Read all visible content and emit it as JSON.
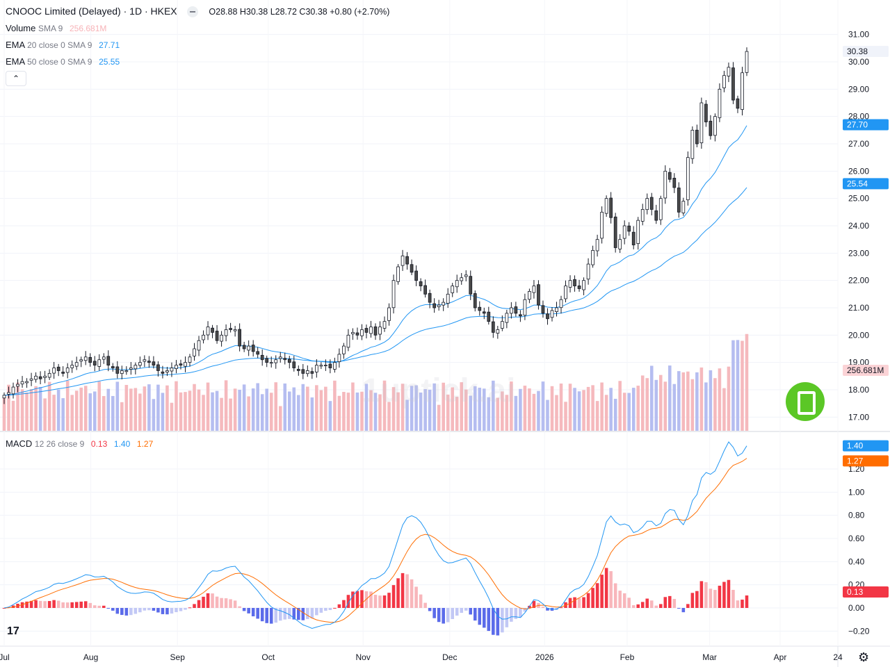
{
  "header": {
    "symbol": "CNOOC Limited (Delayed) · 1D · HKEX",
    "open": "O28.88",
    "high": "H30.38",
    "low": "L28.72",
    "close": "C30.38",
    "change": "+0.80 (+2.70%)"
  },
  "indicators": {
    "volume": {
      "label": "Volume",
      "params": "SMA 9",
      "value": "256.681M"
    },
    "ema20": {
      "label": "EMA",
      "params": "20 close 0 SMA 9",
      "value": "27.71"
    },
    "ema50": {
      "label": "EMA",
      "params": "50 close 0 SMA 9",
      "value": "25.55"
    },
    "macd": {
      "label": "MACD",
      "params": "12 26 close 9",
      "hist": "0.13",
      "macd": "1.40",
      "signal": "1.27"
    }
  },
  "price_axis_ticks": [
    "31.00",
    "30.00",
    "29.00",
    "28.00",
    "27.00",
    "26.00",
    "25.00",
    "24.00",
    "23.00",
    "22.00",
    "21.00",
    "20.00",
    "19.00",
    "18.00",
    "17.00"
  ],
  "macd_axis_ticks": [
    "1.20",
    "1.00",
    "0.80",
    "0.60",
    "0.40",
    "0.20",
    "0.00",
    "−0.20"
  ],
  "price_tags": {
    "last": "30.38",
    "ema20": "27.70",
    "ema50": "25.54",
    "volume": "256.681M"
  },
  "macd_tags": {
    "macd": "1.40",
    "signal": "1.27",
    "hist": "0.13"
  },
  "time_axis": [
    "Jul",
    "Aug",
    "Sep",
    "Oct",
    "Nov",
    "Dec",
    "2026",
    "Feb",
    "Mar",
    "Apr",
    "24"
  ],
  "watermark": "1uptick.ai",
  "tv_logo": "17",
  "colors": {
    "up": "#ffffff",
    "down": "#4a4a4a",
    "candle_border": "#131722",
    "ema20": "#2196f3",
    "ema50": "#2196f3",
    "macd_line": "#2196f3",
    "signal_line": "#ff6d00",
    "hist_pos_strong": "#f23645",
    "hist_pos_weak": "#f8b6bb",
    "hist_neg_strong": "#5b6bea",
    "hist_neg_weak": "#c2c8f5",
    "vol_up": "#f5b9bd",
    "vol_down": "#b5bdf0",
    "last_tag": "#f0f3fa",
    "volume_tag": "#fbd3d6"
  },
  "chart_data": {
    "type": "candlestick",
    "dates": "daily, Jul 2025 to Mar 2026",
    "price_range": [
      16.5,
      31.5
    ],
    "macd_range": [
      -0.3,
      1.35
    ],
    "key_points": [
      {
        "date": "Jul",
        "close": 18.0
      },
      {
        "date": "Aug",
        "close": 18.6
      },
      {
        "date": "Sep",
        "close": 20.2
      },
      {
        "date": "Oct",
        "close": 18.9
      },
      {
        "date": "Nov",
        "close": 22.5
      },
      {
        "date": "Dec",
        "close": 21.5
      },
      {
        "date": "2026",
        "close": 21.0
      },
      {
        "date": "Feb",
        "close": 25.0
      },
      {
        "date": "Mar",
        "close": 27.0
      },
      {
        "date": "last",
        "close": 30.38
      }
    ],
    "closes": [
      17.8,
      17.9,
      18.1,
      18.2,
      18.3,
      18.3,
      18.4,
      18.5,
      18.4,
      18.5,
      18.6,
      18.8,
      18.7,
      18.6,
      18.8,
      18.9,
      19.0,
      19.1,
      19.2,
      19.0,
      18.9,
      19.1,
      19.2,
      18.9,
      18.8,
      18.6,
      18.7,
      18.7,
      18.8,
      18.9,
      19.0,
      19.1,
      19.0,
      18.9,
      18.7,
      18.6,
      18.7,
      18.8,
      18.9,
      18.9,
      19.0,
      19.2,
      19.5,
      19.8,
      20.0,
      20.3,
      20.1,
      19.8,
      20.0,
      20.2,
      20.2,
      20.2,
      19.6,
      19.5,
      19.6,
      19.4,
      19.3,
      19.1,
      19.0,
      19.0,
      19.1,
      19.2,
      19.1,
      19.0,
      18.8,
      18.7,
      18.6,
      18.7,
      18.6,
      18.9,
      18.9,
      18.9,
      18.8,
      19.0,
      19.3,
      19.6,
      20.0,
      20.1,
      20.0,
      20.2,
      20.1,
      20.3,
      20.0,
      20.3,
      20.5,
      21.0,
      22.0,
      22.5,
      22.9,
      22.6,
      22.3,
      22.0,
      21.8,
      21.5,
      21.2,
      21.0,
      21.1,
      21.2,
      21.5,
      21.8,
      22.0,
      22.1,
      22.2,
      21.5,
      21.0,
      20.9,
      20.8,
      20.5,
      20.1,
      20.2,
      20.5,
      20.8,
      21.0,
      20.8,
      20.7,
      21.3,
      21.6,
      21.8,
      21.1,
      20.8,
      20.6,
      20.9,
      21.0,
      21.3,
      21.8,
      22.0,
      21.8,
      21.7,
      22.0,
      22.6,
      23.1,
      23.5,
      24.5,
      25.0,
      24.3,
      23.2,
      23.5,
      24.0,
      23.8,
      23.3,
      24.2,
      24.6,
      25.0,
      24.6,
      24.2,
      25.0,
      26.0,
      25.7,
      25.4,
      24.5,
      24.9,
      26.5,
      27.5,
      27.0,
      28.5,
      27.8,
      27.3,
      28.0,
      29.0,
      29.5,
      29.8,
      28.6,
      28.3,
      29.6,
      30.38
    ],
    "ema20_end": 27.71,
    "ema50_end": 25.55,
    "volume_last": "256.681M",
    "macd_end": 1.4,
    "signal_end": 1.27,
    "hist_end": 0.13
  }
}
